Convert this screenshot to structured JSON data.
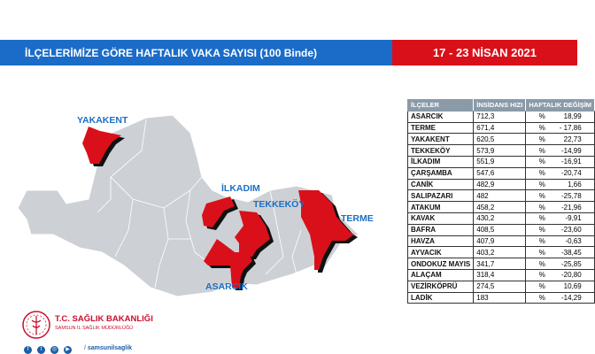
{
  "header": {
    "title": "İLÇELERİMİZE GÖRE HAFTALIK VAKA SAYISI (100 Binde)",
    "date": "17 - 23 NİSAN 2021"
  },
  "colors": {
    "blue": "#1a6cc8",
    "red": "#d9101a",
    "map_gray": "#cdd1d6",
    "highlight": "#d9101a"
  },
  "map": {
    "labels": {
      "yakakent": "YAKAKENT",
      "ilkadim": "İLKADIM",
      "tekkekoy": "TEKKEKÖY",
      "terme": "TERME",
      "asarcik": "ASARCIK"
    }
  },
  "table": {
    "headers": [
      "İLÇELER",
      "İNSİDANS HIZI",
      "HAFTALIK DEĞİŞİM"
    ],
    "rows": [
      [
        "ASARCIK",
        "712,3",
        "%",
        "18,99"
      ],
      [
        "TERME",
        "671,4",
        "%",
        "- 17,86"
      ],
      [
        "YAKAKENT",
        "620,5",
        "%",
        "22,73"
      ],
      [
        "TEKKEKÖY",
        "573,9",
        "%",
        "-14,99"
      ],
      [
        "İLKADIM",
        "551,9",
        "%",
        "-16,91"
      ],
      [
        "ÇARŞAMBA",
        "547,6",
        "%",
        "-20,74"
      ],
      [
        "CANİK",
        "482,9",
        "%",
        "1,66"
      ],
      [
        "SALIPAZARI",
        "482",
        "%",
        "-25,78"
      ],
      [
        "ATAKUM",
        "458,2",
        "%",
        "-21,96"
      ],
      [
        "KAVAK",
        "430,2",
        "%",
        "-9,91"
      ],
      [
        "BAFRA",
        "408,5",
        "%",
        "-23,60"
      ],
      [
        "HAVZA",
        "407,9",
        "%",
        "-0,63"
      ],
      [
        "AYVACIK",
        "403,2",
        "%",
        "-38,45"
      ],
      [
        "ONDOKUZ MAYIS",
        "341,7",
        "%",
        "-25,85"
      ],
      [
        "ALAÇAM",
        "318,4",
        "%",
        "-20,80"
      ],
      [
        "VEZİRKÖPRÜ",
        "274,5",
        "%",
        "10,69"
      ],
      [
        "LADİK",
        "183",
        "%",
        "-14,29"
      ]
    ]
  },
  "footer": {
    "org": "T.C. SAĞLIK BAKANLIĞI",
    "sub": "SAMSUN İL SAĞLIK MÜDÜRLÜĞÜ",
    "handle": "samsunilsaglik",
    "social": [
      "f",
      "t",
      "◎",
      "▶"
    ]
  }
}
